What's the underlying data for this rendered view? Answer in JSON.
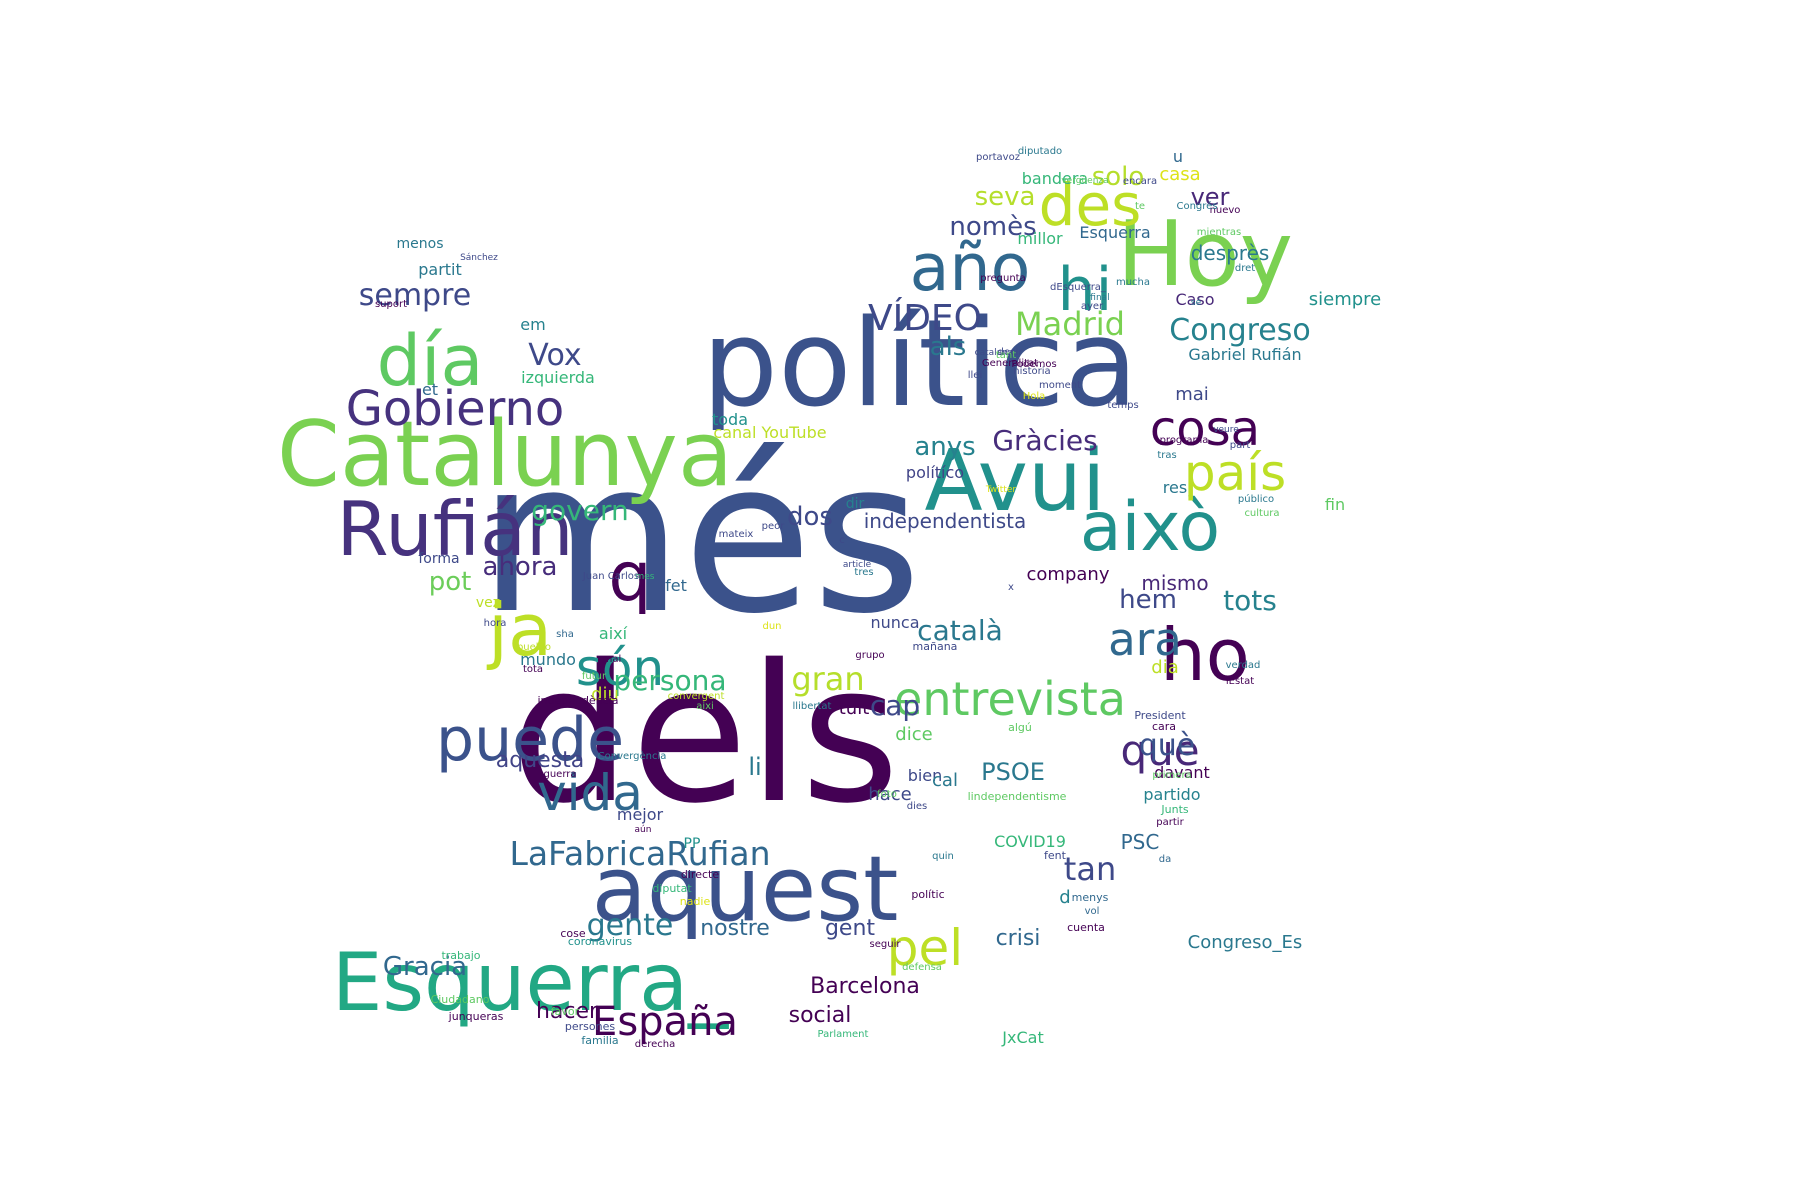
{
  "wordcloud": {
    "words": [
      {
        "text": "més",
        "color": "#3b528b"
      },
      {
        "text": "dels",
        "color": "#440154"
      },
      {
        "text": "política",
        "color": "#3b528b"
      },
      {
        "text": "Catalunya",
        "color": "#7ad151"
      },
      {
        "text": "Avui",
        "color": "#21918c"
      },
      {
        "text": "Hoy",
        "color": "#7ad151"
      },
      {
        "text": "aquest",
        "color": "#3b528b"
      },
      {
        "text": "Esquerra_",
        "color": "#22a884"
      },
      {
        "text": "Rufián",
        "color": "#46327e"
      },
      {
        "text": "això",
        "color": "#21918c"
      },
      {
        "text": "año",
        "color": "#31688e"
      },
      {
        "text": "hi",
        "color": "#21918c"
      },
      {
        "text": "des",
        "color": "#bddf26"
      },
      {
        "text": "día",
        "color": "#5ec962"
      },
      {
        "text": "ho",
        "color": "#440154"
      },
      {
        "text": "ja",
        "color": "#bddf26"
      },
      {
        "text": "q",
        "color": "#440154"
      },
      {
        "text": "puede",
        "color": "#3b528b"
      },
      {
        "text": "Gobierno",
        "color": "#46327e"
      },
      {
        "text": "entrevista",
        "color": "#5ec962"
      },
      {
        "text": "país",
        "color": "#bddf26"
      },
      {
        "text": "cosa",
        "color": "#440154"
      },
      {
        "text": "pel",
        "color": "#bddf26"
      },
      {
        "text": "vida",
        "color": "#31688e"
      },
      {
        "text": "són",
        "color": "#21918c"
      },
      {
        "text": "ara",
        "color": "#31688e"
      },
      {
        "text": "que",
        "color": "#482878"
      },
      {
        "text": "España",
        "color": "#440154"
      },
      {
        "text": "LaFabricaRufian",
        "color": "#31688e"
      },
      {
        "text": "VÍDEO",
        "color": "#3e4989"
      },
      {
        "text": "Madrid",
        "color": "#7ad151"
      },
      {
        "text": "Congreso",
        "color": "#26828e"
      },
      {
        "text": "sempre",
        "color": "#3e4989"
      },
      {
        "text": "Vox",
        "color": "#3e4989"
      },
      {
        "text": "Gràcies",
        "color": "#472d7b"
      },
      {
        "text": "govern",
        "color": "#35b779"
      },
      {
        "text": "ahora",
        "color": "#472d7b"
      },
      {
        "text": "tots",
        "color": "#26828e"
      },
      {
        "text": "gente",
        "color": "#2a788e"
      },
      {
        "text": "tan",
        "color": "#3e4989"
      },
      {
        "text": "gran",
        "color": "#b5de2b"
      },
      {
        "text": "català",
        "color": "#2a788e"
      },
      {
        "text": "persona",
        "color": "#35b779"
      },
      {
        "text": "cap",
        "color": "#3e4989"
      },
      {
        "text": "solo",
        "color": "#b5de2b"
      },
      {
        "text": "seva",
        "color": "#b5de2b"
      },
      {
        "text": "nomès",
        "color": "#3e4989"
      },
      {
        "text": "anys",
        "color": "#26828e"
      },
      {
        "text": "als",
        "color": "#2a788e"
      },
      {
        "text": "dos",
        "color": "#3e4989"
      },
      {
        "text": "pot",
        "color": "#6ccd5a"
      },
      {
        "text": "hem",
        "color": "#3e4989"
      },
      {
        "text": "ver",
        "color": "#482878"
      },
      {
        "text": "PSOE",
        "color": "#2a788e"
      },
      {
        "text": "li",
        "color": "#2a788e"
      },
      {
        "text": "Gracia",
        "color": "#31688e"
      },
      {
        "text": "hacer",
        "color": "#440154"
      },
      {
        "text": "social",
        "color": "#440154"
      },
      {
        "text": "Barcelona",
        "color": "#440154"
      },
      {
        "text": "gent",
        "color": "#3e4989"
      },
      {
        "text": "nostre",
        "color": "#31688e"
      },
      {
        "text": "crisi",
        "color": "#31688e"
      },
      {
        "text": "aquesta",
        "color": "#414487"
      },
      {
        "text": "independentista",
        "color": "#3e4989"
      },
      {
        "text": "mismo",
        "color": "#482878"
      },
      {
        "text": "company",
        "color": "#440154"
      },
      {
        "text": "desprès",
        "color": "#2a788e"
      },
      {
        "text": "siempre",
        "color": "#21918c"
      },
      {
        "text": "Gabriel Rufián",
        "color": "#2a788e"
      },
      {
        "text": "Caso",
        "color": "#482878"
      },
      {
        "text": "casa",
        "color": "#dde318"
      },
      {
        "text": "u",
        "color": "#31688e"
      },
      {
        "text": "bandera",
        "color": "#35b779"
      },
      {
        "text": "millor",
        "color": "#35b779"
      },
      {
        "text": "Esquerra",
        "color": "#31688e"
      },
      {
        "text": "partit",
        "color": "#2a788e"
      },
      {
        "text": "menos",
        "color": "#2a788e"
      },
      {
        "text": "em",
        "color": "#26828e"
      },
      {
        "text": "izquierda",
        "color": "#35b779"
      },
      {
        "text": "et",
        "color": "#31688e"
      },
      {
        "text": "toda",
        "color": "#21918c"
      },
      {
        "text": "canal YouTube",
        "color": "#bddf26"
      },
      {
        "text": "polític",
        "color": "#440154"
      },
      {
        "text": "polítíco",
        "color": "#414487"
      },
      {
        "text": "mai",
        "color": "#3e4989"
      },
      {
        "text": "res",
        "color": "#2a788e"
      },
      {
        "text": "fin",
        "color": "#5ec962"
      },
      {
        "text": "dir",
        "color": "#26828e"
      },
      {
        "text": "diu",
        "color": "#bddf26"
      },
      {
        "text": "mundo",
        "color": "#2a788e"
      },
      {
        "text": "així",
        "color": "#35b779"
      },
      {
        "text": "fet",
        "color": "#31688e"
      },
      {
        "text": "forma",
        "color": "#3e4989"
      },
      {
        "text": "vez",
        "color": "#bddf26"
      },
      {
        "text": "tuit",
        "color": "#440154"
      },
      {
        "text": "dice",
        "color": "#5ec962"
      },
      {
        "text": "bien",
        "color": "#3e4989"
      },
      {
        "text": "cal",
        "color": "#2a788e"
      },
      {
        "text": "hace",
        "color": "#3e4989"
      },
      {
        "text": "mejor",
        "color": "#3e4989"
      },
      {
        "text": "PP",
        "color": "#21918c"
      },
      {
        "text": "nunca",
        "color": "#3e4989"
      },
      {
        "text": "dia",
        "color": "#bddf26"
      },
      {
        "text": "què",
        "color": "#3b528b"
      },
      {
        "text": "davant",
        "color": "#440154"
      },
      {
        "text": "partido",
        "color": "#26828e"
      },
      {
        "text": "COVID19",
        "color": "#35b779"
      },
      {
        "text": "PSC",
        "color": "#31688e"
      },
      {
        "text": "d",
        "color": "#26828e"
      },
      {
        "text": "Congreso_Es",
        "color": "#2a788e"
      },
      {
        "text": "JxCat",
        "color": "#35b779"
      },
      {
        "text": "directe",
        "color": "#440154"
      },
      {
        "text": "diputat",
        "color": "#35b779"
      },
      {
        "text": "nadie",
        "color": "#dde318"
      },
      {
        "text": "coronavirus",
        "color": "#21918c"
      },
      {
        "text": "cose",
        "color": "#440154"
      },
      {
        "text": "trabajo",
        "color": "#35b779"
      },
      {
        "text": "Ciudadano",
        "color": "#5ec962"
      },
      {
        "text": "junqueras",
        "color": "#440154"
      },
      {
        "text": "favor",
        "color": "#5ec962"
      },
      {
        "text": "persones",
        "color": "#3e4989"
      },
      {
        "text": "familia",
        "color": "#2a788e"
      },
      {
        "text": "derecha",
        "color": "#440154"
      },
      {
        "text": "Parlament",
        "color": "#35b779"
      },
      {
        "text": "defensa",
        "color": "#5ec962"
      },
      {
        "text": "seguir",
        "color": "#440154"
      },
      {
        "text": "fent",
        "color": "#3e4989"
      },
      {
        "text": "menys",
        "color": "#31688e"
      },
      {
        "text": "vol",
        "color": "#31688e"
      },
      {
        "text": "cuenta",
        "color": "#440154"
      },
      {
        "text": "da",
        "color": "#31688e"
      },
      {
        "text": "partir",
        "color": "#440154"
      },
      {
        "text": "Junts",
        "color": "#35b779"
      },
      {
        "text": "lindependentisme",
        "color": "#5ec962"
      },
      {
        "text": "primera",
        "color": "#5ec962"
      },
      {
        "text": "cara",
        "color": "#440154"
      },
      {
        "text": "President",
        "color": "#3e4989"
      },
      {
        "text": "algú",
        "color": "#5ec962"
      },
      {
        "text": "lEstat",
        "color": "#440154"
      },
      {
        "text": "verdad",
        "color": "#2a788e"
      },
      {
        "text": "mañana",
        "color": "#3e4989"
      },
      {
        "text": "grupo",
        "color": "#440154"
      },
      {
        "text": "llibertat",
        "color": "#2a788e"
      },
      {
        "text": "aixi",
        "color": "#5ec962"
      },
      {
        "text": "convergent",
        "color": "#bddf26"
      },
      {
        "text": "Convergència",
        "color": "#2a788e"
      },
      {
        "text": "independència",
        "color": "#440154"
      },
      {
        "text": "tota",
        "color": "#440154"
      },
      {
        "text": "futur",
        "color": "#5ec962"
      },
      {
        "text": "mal",
        "color": "#440154"
      },
      {
        "text": "pueblo",
        "color": "#bddf26"
      },
      {
        "text": "sha",
        "color": "#31688e"
      },
      {
        "text": "hora",
        "color": "#3e4989"
      },
      {
        "text": "mes",
        "color": "#35b779"
      },
      {
        "text": "guerra",
        "color": "#440154"
      },
      {
        "text": "aún",
        "color": "#440154"
      },
      {
        "text": "foto",
        "color": "#5ec962"
      },
      {
        "text": "dies",
        "color": "#3e4989"
      },
      {
        "text": "quin",
        "color": "#2a788e"
      },
      {
        "text": "tres",
        "color": "#2a788e"
      },
      {
        "text": "x",
        "color": "#3e4989"
      },
      {
        "text": "article",
        "color": "#3e4989"
      },
      {
        "text": "c",
        "color": "#3e4989"
      },
      {
        "text": "Juan Carlos",
        "color": "#3e4989"
      },
      {
        "text": "dun",
        "color": "#dde318"
      },
      {
        "text": "peor",
        "color": "#3e4989"
      },
      {
        "text": "mateix",
        "color": "#3e4989"
      },
      {
        "text": "Twitter",
        "color": "#dde318"
      },
      {
        "text": "part",
        "color": "#3e4989"
      },
      {
        "text": "tras",
        "color": "#2a788e"
      },
      {
        "text": "público",
        "color": "#2a788e"
      },
      {
        "text": "cultura",
        "color": "#5ec962"
      },
      {
        "text": "programa",
        "color": "#440154"
      },
      {
        "text": "veure",
        "color": "#3e4989"
      },
      {
        "text": "temps",
        "color": "#3e4989"
      },
      {
        "text": "Hola",
        "color": "#dde318"
      },
      {
        "text": "moment",
        "color": "#3e4989"
      },
      {
        "text": "Generalitat",
        "color": "#440154"
      },
      {
        "text": "decir",
        "color": "#3e4989"
      },
      {
        "text": "catalana",
        "color": "#3e4989"
      },
      {
        "text": "historia",
        "color": "#3e4989"
      },
      {
        "text": "llei",
        "color": "#3e4989"
      },
      {
        "text": "tant",
        "color": "#5ec962"
      },
      {
        "text": "Podemos",
        "color": "#440154"
      },
      {
        "text": "mucha",
        "color": "#2a788e"
      },
      {
        "text": "pregunta",
        "color": "#440154"
      },
      {
        "text": "dEsquerra_",
        "color": "#3e4989"
      },
      {
        "text": "ayer",
        "color": "#3e4989"
      },
      {
        "text": "final",
        "color": "#2a788e"
      },
      {
        "text": "sé",
        "color": "#2a788e"
      },
      {
        "text": "te",
        "color": "#5ec962"
      },
      {
        "text": "encara",
        "color": "#3e4989"
      },
      {
        "text": "vergüenza",
        "color": "#5ec962"
      },
      {
        "text": "diputado",
        "color": "#2a788e"
      },
      {
        "text": "portavoz",
        "color": "#3e4989"
      },
      {
        "text": "nuevo",
        "color": "#440154"
      },
      {
        "text": "mientras",
        "color": "#5ec962"
      },
      {
        "text": "Congrés",
        "color": "#2a788e"
      },
      {
        "text": "dret",
        "color": "#2a788e"
      },
      {
        "text": "Sánchez",
        "color": "#3e4989"
      },
      {
        "text": "suport",
        "color": "#440154"
      }
    ]
  }
}
